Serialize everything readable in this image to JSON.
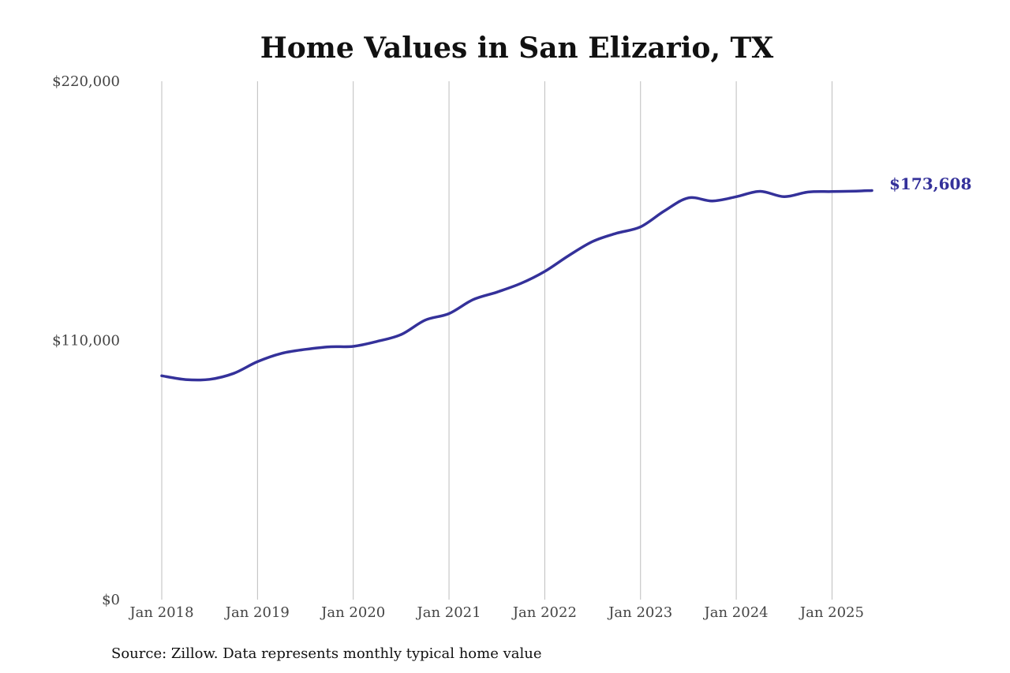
{
  "source_note": "Source: Zillow. Data represents monthly typical home value",
  "colors": {
    "line": "#34319a",
    "grid": "#bdbdbd"
  },
  "chart_data": {
    "type": "line",
    "title": "Home Values in San Elizario, TX",
    "xlabel": "",
    "ylabel": "",
    "ylim": [
      0,
      220000
    ],
    "yticks": [
      0,
      110000,
      220000
    ],
    "ytick_labels": [
      "$0",
      "$110,000",
      "$220,000"
    ],
    "xlim": [
      "2018-01",
      "2025-06"
    ],
    "xticks": [
      "2018-01",
      "2019-01",
      "2020-01",
      "2021-01",
      "2022-01",
      "2023-01",
      "2024-01",
      "2025-01"
    ],
    "xtick_labels": [
      "Jan 2018",
      "Jan 2019",
      "Jan 2020",
      "Jan 2021",
      "Jan 2022",
      "Jan 2023",
      "Jan 2024",
      "Jan 2025"
    ],
    "grid": {
      "vertical": true,
      "horizontal": false
    },
    "end_label": "$173,608",
    "series": [
      {
        "x": [
          "2018-01",
          "2018-04",
          "2018-07",
          "2018-10",
          "2019-01",
          "2019-04",
          "2019-07",
          "2019-10",
          "2020-01",
          "2020-04",
          "2020-07",
          "2020-10",
          "2021-01",
          "2021-04",
          "2021-07",
          "2021-10",
          "2022-01",
          "2022-04",
          "2022-07",
          "2022-10",
          "2023-01",
          "2023-04",
          "2023-07",
          "2023-10",
          "2024-01",
          "2024-04",
          "2024-07",
          "2024-10",
          "2025-01",
          "2025-04",
          "2025-06"
        ],
        "values": [
          95000,
          93400,
          93500,
          96000,
          101000,
          104500,
          106200,
          107300,
          107500,
          109600,
          112500,
          118600,
          121400,
          127300,
          130500,
          134200,
          139300,
          146000,
          152000,
          155500,
          158200,
          165000,
          170500,
          169200,
          171000,
          173300,
          171000,
          173000,
          173200,
          173400,
          173608
        ]
      }
    ]
  }
}
